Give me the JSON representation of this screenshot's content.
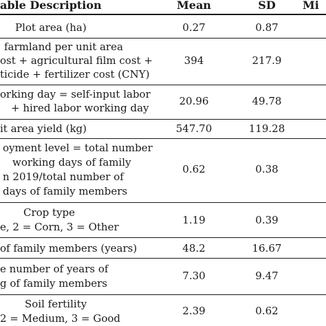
{
  "header": {
    "description": "able Description",
    "mean": "Mean",
    "sd": "SD",
    "min": "Mi"
  },
  "rows": [
    {
      "lines": [
        "Plot area (ha)"
      ],
      "mean": "0.27",
      "sd": "0.87"
    },
    {
      "lines": [
        "farmland per unit area",
        "ost + agricultural film cost +",
        "ticide + fertilizer cost (CNY)"
      ],
      "mean": "394",
      "sd": "217.9"
    },
    {
      "lines": [
        "orking day = self-input labor",
        "+ hired labor working day"
      ],
      "mean": "20.96",
      "sd": "49.78"
    },
    {
      "lines": [
        "it area yield (kg)"
      ],
      "mean": "547.70",
      "sd": "119.28"
    },
    {
      "lines": [
        "oyment level = total number",
        "working days of family",
        "n 2019/total number of",
        "days of family members"
      ],
      "mean": "0.62",
      "sd": "0.38"
    },
    {
      "lines": [
        "Crop type",
        "e, 2 = Corn, 3 = Other"
      ],
      "mean": "1.19",
      "sd": "0.39"
    },
    {
      "lines": [
        "of family members (years)"
      ],
      "mean": "48.2",
      "sd": "16.67"
    },
    {
      "lines": [
        "e number of years of",
        "g of family members"
      ],
      "mean": "7.30",
      "sd": "9.47"
    },
    {
      "lines": [
        "Soil fertility",
        "2 = Medium, 3 = Good"
      ],
      "mean": "2.39",
      "sd": "0.62"
    }
  ]
}
